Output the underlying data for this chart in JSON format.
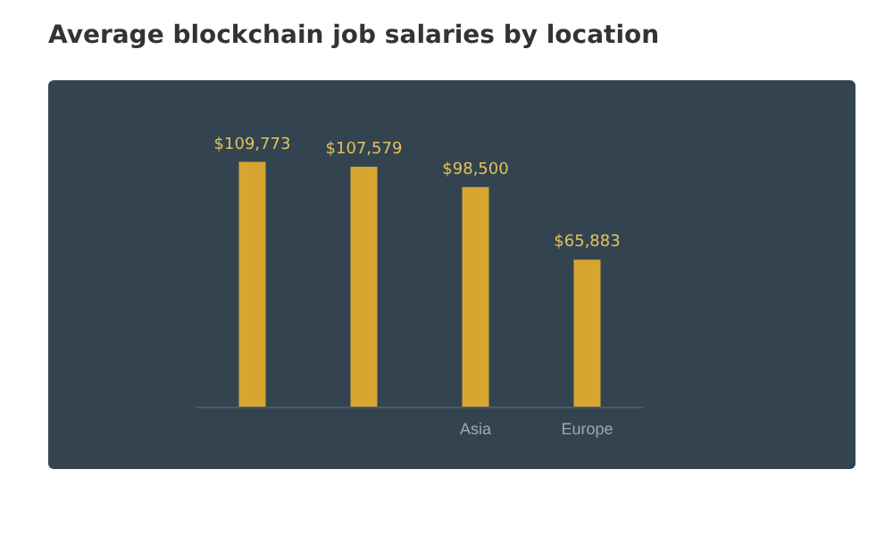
{
  "chart_data": {
    "type": "bar",
    "title": "Average blockchain job salaries by location",
    "categories": [
      null,
      null,
      "Asia",
      "Europe"
    ],
    "values": [
      109773,
      107579,
      98500,
      65883
    ],
    "value_labels": [
      "$109,773",
      "$107,579",
      "$98,500",
      "$65,883"
    ],
    "color": "#d6a631"
  }
}
